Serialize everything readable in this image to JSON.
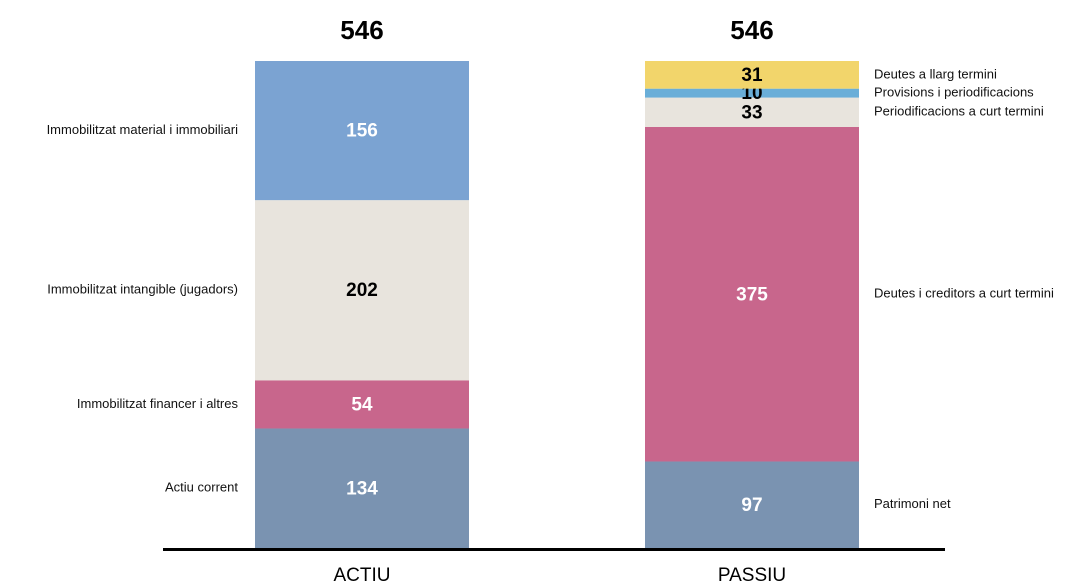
{
  "chart_data": {
    "type": "stacked_bar",
    "bars": [
      {
        "category": "ACTIU",
        "total": 546,
        "label_side": "left",
        "segments": [
          {
            "name": "Actiu corrent",
            "value": 134,
            "color": "#7a93b1",
            "text_color": "#ffffff"
          },
          {
            "name": "Immobilitzat financer i altres",
            "value": 54,
            "color": "#c8668c",
            "text_color": "#ffffff"
          },
          {
            "name": "Immobilitzat intangible (jugadors)",
            "value": 202,
            "color": "#e8e4dd",
            "text_color": "#000000"
          },
          {
            "name": "Immobilitzat material i immobiliari",
            "value": 156,
            "color": "#7ba3d2",
            "text_color": "#ffffff"
          }
        ]
      },
      {
        "category": "PASSIU",
        "total": 546,
        "label_side": "right",
        "segments": [
          {
            "name": "Patrimoni net",
            "value": 97,
            "color": "#7a93b1",
            "text_color": "#ffffff"
          },
          {
            "name": "Deutes i creditors a curt termini",
            "value": 375,
            "color": "#c8668c",
            "text_color": "#ffffff"
          },
          {
            "name": "Periodificacions a curt termini",
            "value": 33,
            "color": "#e8e4dd",
            "text_color": "#000000"
          },
          {
            "name": "Provisions i periodificacions",
            "value": 10,
            "color": "#6aaed8",
            "text_color": "#000000"
          },
          {
            "name": "Deutes a llarg termini",
            "value": 31,
            "color": "#f2d56b",
            "text_color": "#000000"
          }
        ]
      }
    ]
  }
}
